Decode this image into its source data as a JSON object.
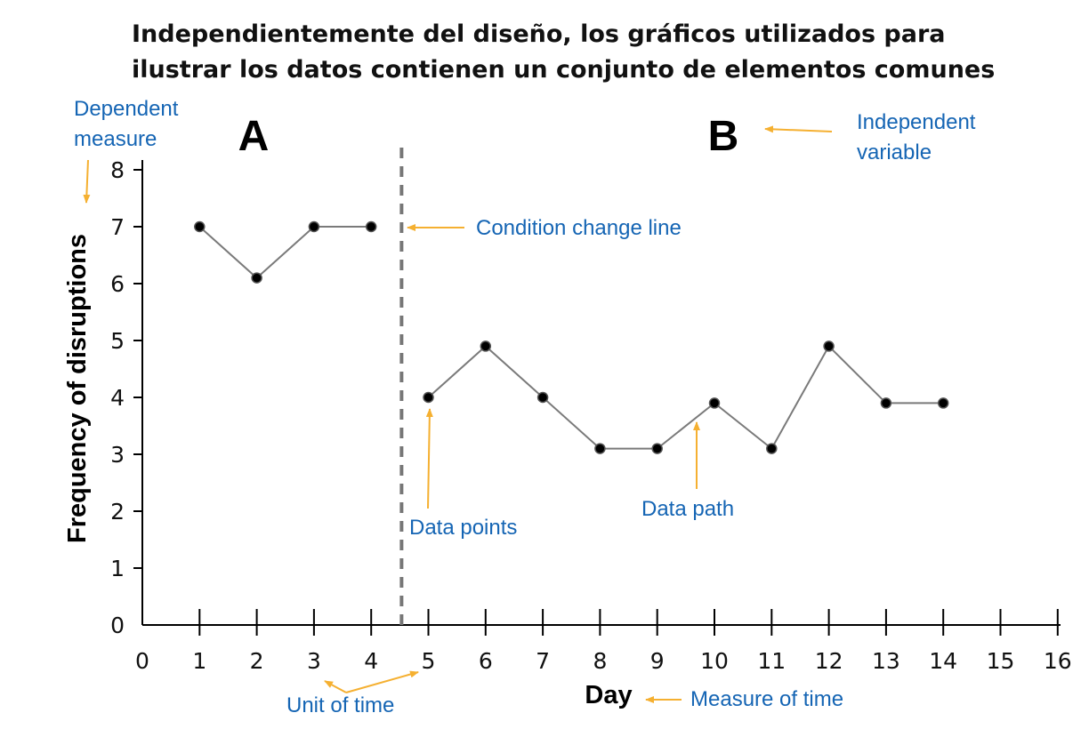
{
  "chart_data": {
    "type": "line",
    "title": [
      "Independientemente del diseño, los gráficos utilizados para",
      "ilustrar los datos contienen un conjunto de elementos comunes"
    ],
    "xlabel": "Day",
    "ylabel": "Frequency of disruptions",
    "xlim": [
      0,
      16
    ],
    "ylim": [
      0,
      8
    ],
    "x_ticks": [
      "0",
      "1",
      "2",
      "3",
      "4",
      "5",
      "6",
      "7",
      "8",
      "9",
      "10",
      "11",
      "12",
      "13",
      "14",
      "15",
      "16"
    ],
    "y_ticks": [
      "0",
      "1",
      "2",
      "3",
      "4",
      "5",
      "6",
      "7",
      "8"
    ],
    "grid": false,
    "phase_change_x": 4.5,
    "phases": [
      {
        "label": "A",
        "x": [
          1,
          2,
          3,
          4
        ],
        "y": [
          7,
          6.1,
          7,
          7
        ]
      },
      {
        "label": "B",
        "x": [
          5,
          6,
          7,
          8,
          9,
          10,
          11,
          12,
          13,
          14
        ],
        "y": [
          4,
          4.9,
          4,
          3.1,
          3.1,
          3.9,
          3.1,
          4.9,
          3.9,
          3.9
        ]
      }
    ],
    "annotations": {
      "dependent_measure": [
        "Dependent",
        "measure"
      ],
      "independent_variable": [
        "Independent",
        "variable"
      ],
      "condition_change_line": "Condition change line",
      "data_points": "Data points",
      "data_path": "Data path",
      "unit_of_time": "Unit of time",
      "measure_of_time": "Measure of time"
    },
    "colors": {
      "annotation_text": "#1565b4",
      "arrow": "#f5b031",
      "data_path": "#7a7a7a",
      "marker": "#000000",
      "condition_line": "#777777"
    }
  }
}
